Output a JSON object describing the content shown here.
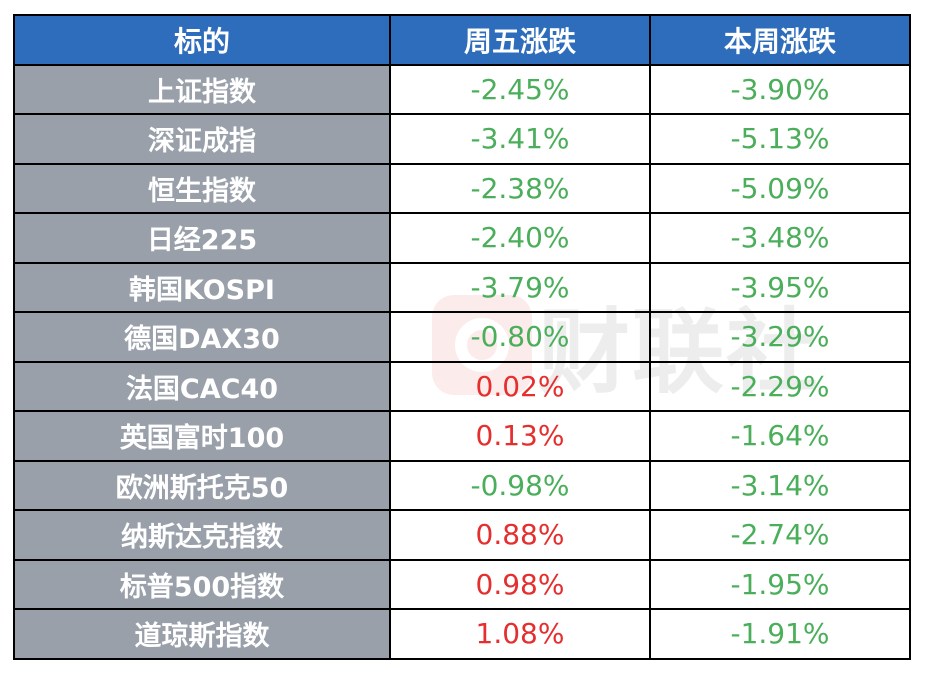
{
  "watermark": "财联社",
  "colors": {
    "header": "#2E6DBB",
    "name_bg": "#99A0AA",
    "up": "#E52E2E",
    "down": "#4AAE5A"
  },
  "headers": [
    "标的",
    "周五涨跌",
    "本周涨跌"
  ],
  "rows": [
    {
      "name": "上证指数",
      "fri": "-2.45%",
      "week": "-3.90%"
    },
    {
      "name": "深证成指",
      "fri": "-3.41%",
      "week": "-5.13%"
    },
    {
      "name": "恒生指数",
      "fri": "-2.38%",
      "week": "-5.09%"
    },
    {
      "name": "日经225",
      "fri": "-2.40%",
      "week": "-3.48%"
    },
    {
      "name": "韩国KOSPI",
      "fri": "-3.79%",
      "week": "-3.95%"
    },
    {
      "name": "德国DAX30",
      "fri": "-0.80%",
      "week": "-3.29%"
    },
    {
      "name": "法国CAC40",
      "fri": "0.02%",
      "week": "-2.29%"
    },
    {
      "name": "英国富时100",
      "fri": "0.13%",
      "week": "-1.64%"
    },
    {
      "name": "欧洲斯托克50",
      "fri": "-0.98%",
      "week": "-3.14%"
    },
    {
      "name": "纳斯达克指数",
      "fri": "0.88%",
      "week": "-2.74%"
    },
    {
      "name": "标普500指数",
      "fri": "0.98%",
      "week": "-1.95%"
    },
    {
      "name": "道琼斯指数",
      "fri": "1.08%",
      "week": "-1.91%"
    }
  ]
}
